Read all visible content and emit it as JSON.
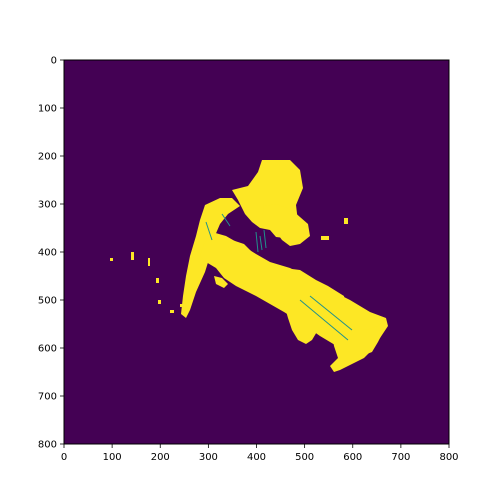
{
  "figure": {
    "background_color": "#440154",
    "foreground_color": "#fde725",
    "edge_color": "#21918c",
    "x_ticks": [
      "0",
      "100",
      "200",
      "300",
      "400",
      "500",
      "600",
      "700",
      "800"
    ],
    "y_ticks": [
      "0",
      "100",
      "200",
      "300",
      "400",
      "500",
      "600",
      "700",
      "800"
    ],
    "x_range": [
      0,
      800
    ],
    "y_range": [
      0,
      800
    ],
    "y_axis_inverted": true
  }
}
